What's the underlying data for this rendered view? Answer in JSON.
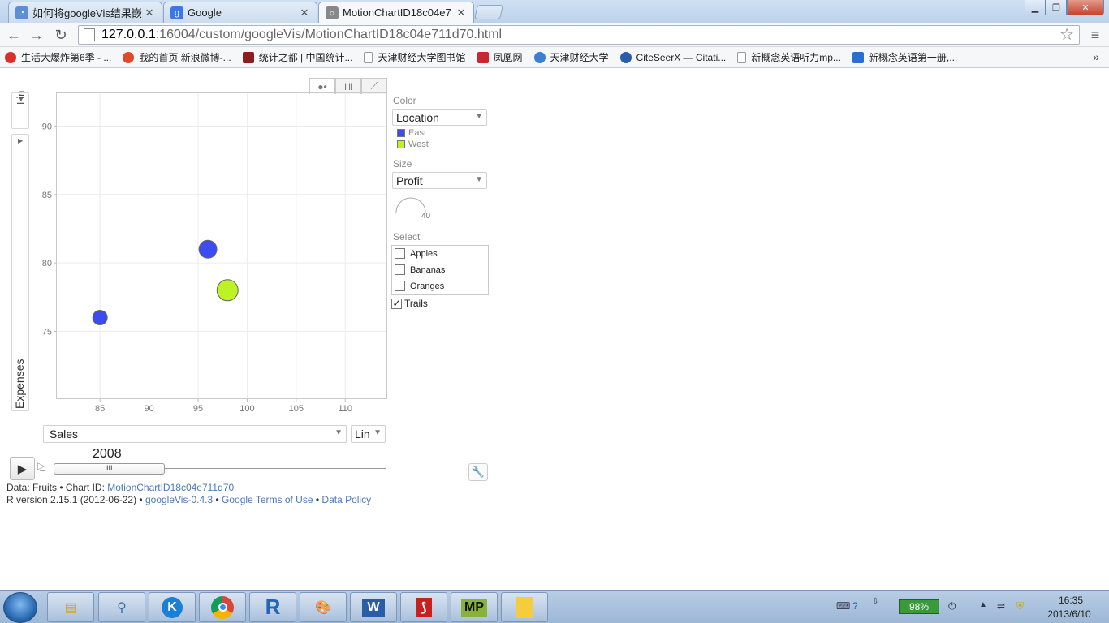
{
  "browser": {
    "tabs": [
      {
        "title": "如何将googleVis结果嵌",
        "favicon_color": "#5b8fd4"
      },
      {
        "title": "Google",
        "favicon_color": "#3b78e7"
      },
      {
        "title": "MotionChartID18c04e7",
        "favicon_color": "#888888"
      }
    ],
    "url_host": "127.0.0.1",
    "url_path": ":16004/custom/googleVis/MotionChartID18c04e711d70.html",
    "bookmarks": [
      {
        "label": "生活大爆炸第6季 - ...",
        "color": "#d9302c"
      },
      {
        "label": "我的首页 新浪微博-...",
        "color": "#e0492e"
      },
      {
        "label": "统计之都 | 中国统计...",
        "color": "#8b1f1f"
      },
      {
        "label": "天津财经大学图书馆",
        "color": "#cccccc"
      },
      {
        "label": "凤凰网",
        "color": "#c8282e"
      },
      {
        "label": "天津财经大学",
        "color": "#3c7ed0"
      },
      {
        "label": "CiteSeerX — Citati...",
        "color": "#2a5ea8"
      },
      {
        "label": "新概念英语听力mp...",
        "color": "#cccccc"
      },
      {
        "label": "新概念英语第一册,...",
        "color": "#2a6fd0"
      }
    ],
    "more": "»"
  },
  "chart_data": {
    "type": "scatter",
    "xlabel": "Sales",
    "ylabel": "Expenses",
    "x_scale": "Lin",
    "y_scale": "Lin",
    "xlim": [
      80.6,
      114.2
    ],
    "ylim": [
      70.1,
      92.4
    ],
    "xticks": [
      85,
      90,
      95,
      100,
      105,
      110
    ],
    "yticks": [
      75,
      80,
      85,
      90
    ],
    "grid": true,
    "year": "2008",
    "points": [
      {
        "x": 85,
        "y": 76,
        "location": "East",
        "size": 10
      },
      {
        "x": 96,
        "y": 81,
        "location": "East",
        "size": 15
      },
      {
        "x": 98,
        "y": 78,
        "location": "West",
        "size": 20
      }
    ]
  },
  "controls": {
    "color_label": "Color",
    "color_value": "Location",
    "legend": [
      {
        "name": "East",
        "color": "#3b4cf0"
      },
      {
        "name": "West",
        "color": "#bdf224"
      }
    ],
    "size_label": "Size",
    "size_value": "Profit",
    "size_gauge": "40",
    "select_label": "Select",
    "select_items": [
      "Apples",
      "Bananas",
      "Oranges"
    ],
    "trails_label": "Trails",
    "trails_checked": "✓",
    "x_scale": "Lin",
    "y_scale": "Lin",
    "x_metric": "Sales",
    "y_metric": "Expenses",
    "play_icon": "▶",
    "slider_grip": "III"
  },
  "footer": {
    "data_prefix": "Data: Fruits • Chart ID: ",
    "chart_id": "MotionChartID18c04e711d70",
    "r_version": "R version 2.15.1 (2012-06-22) • ",
    "googlevis": "googleVis-0.4.3",
    "sep1": " • ",
    "terms": "Google Terms of Use",
    "sep2": " • ",
    "policy": "Data Policy"
  },
  "taskbar": {
    "apps": [
      "explorer",
      "search",
      "K",
      "chrome",
      "R",
      "paint",
      "W",
      "pdf",
      "MP",
      "notes"
    ],
    "battery": "98%",
    "time": "16:35",
    "date": "2013/6/10"
  }
}
